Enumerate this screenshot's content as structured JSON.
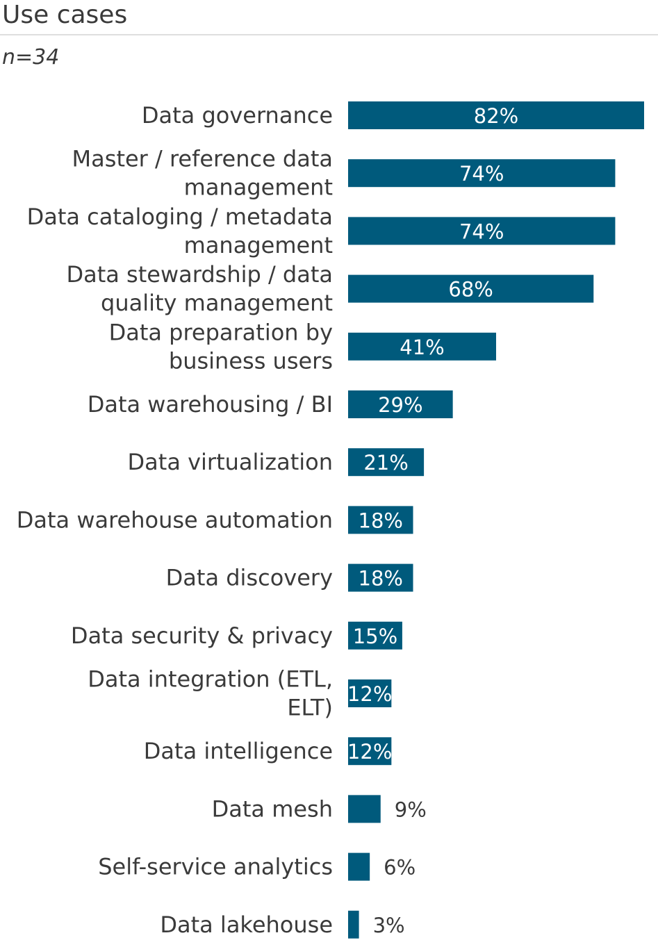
{
  "title": "Use cases",
  "subtitle": "n=34",
  "colors": {
    "bar": "#005a7c",
    "label_inside": "#ffffff",
    "label_outside": "#3a3a3a",
    "category_text": "#3a3a3a"
  },
  "chart_data": {
    "type": "bar",
    "orientation": "horizontal",
    "unit": "%",
    "categories": [
      [
        "Data governance"
      ],
      [
        "Master / reference data",
        "management"
      ],
      [
        "Data cataloging / metadata",
        "management"
      ],
      [
        "Data stewardship / data",
        "quality management"
      ],
      [
        "Data preparation by",
        "business users"
      ],
      [
        "Data warehousing / BI"
      ],
      [
        "Data virtualization"
      ],
      [
        "Data warehouse automation"
      ],
      [
        "Data discovery"
      ],
      [
        "Data security & privacy"
      ],
      [
        "Data integration (ETL,",
        "ELT)"
      ],
      [
        "Data intelligence"
      ],
      [
        "Data mesh"
      ],
      [
        "Self-service analytics"
      ],
      [
        "Data lakehouse"
      ]
    ],
    "values": [
      82,
      74,
      74,
      68,
      41,
      29,
      21,
      18,
      18,
      15,
      12,
      12,
      9,
      6,
      3
    ],
    "labels": [
      "82%",
      "74%",
      "74%",
      "68%",
      "41%",
      "29%",
      "21%",
      "18%",
      "18%",
      "15%",
      "12%",
      "12%",
      "9%",
      "6%",
      "3%"
    ],
    "xlim": [
      0,
      82
    ],
    "grid": false,
    "legend": "none"
  }
}
